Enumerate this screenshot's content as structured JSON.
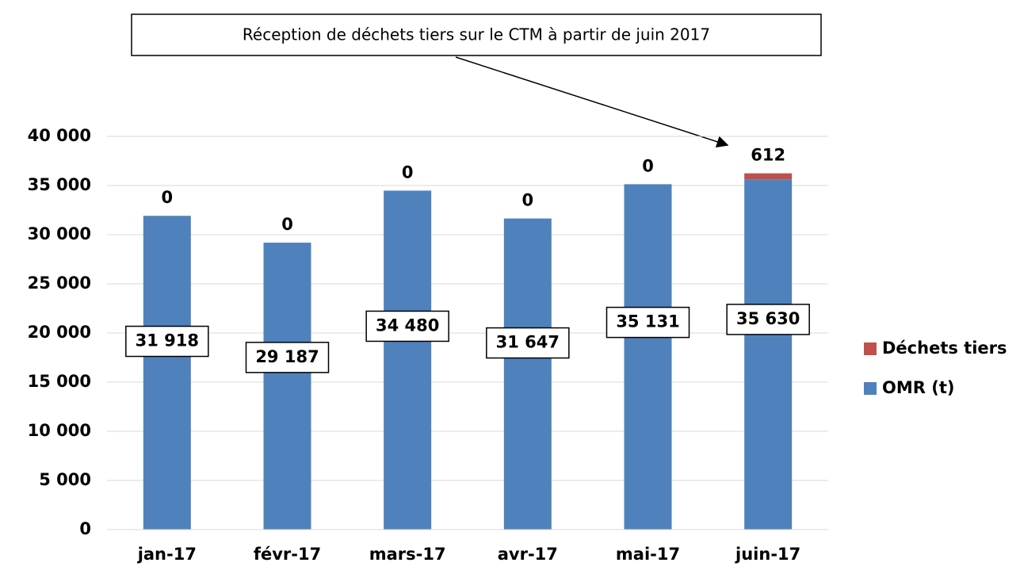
{
  "chart_data": {
    "type": "stacked_bar",
    "annotation": "Réception de déchets tiers sur le CTM à partir de juin 2017",
    "categories": [
      "jan-17",
      "févr-17",
      "mars-17",
      "avr-17",
      "mai-17",
      "juin-17"
    ],
    "series": [
      {
        "name": "OMR (t)",
        "color": "#4f81bd",
        "values": [
          31918,
          29187,
          34480,
          31647,
          35131,
          35630
        ],
        "value_labels": [
          "31 918",
          "29 187",
          "34 480",
          "31 647",
          "35 131",
          "35 630"
        ]
      },
      {
        "name": "Déchets tiers",
        "color": "#c0504d",
        "values": [
          0,
          0,
          0,
          0,
          0,
          612
        ]
      }
    ],
    "ylim": [
      0,
      40000
    ],
    "yticks": [
      0,
      {
        "value": 5000,
        "label": "5 000"
      },
      {
        "value": 10000,
        "label": "10 000"
      },
      {
        "value": 15000,
        "label": "15 000"
      },
      {
        "value": 20000,
        "label": "20 000"
      },
      {
        "value": 25000,
        "label": "25 000"
      },
      {
        "value": 30000,
        "label": "30 000"
      },
      {
        "value": 35000,
        "label": "35 000"
      },
      {
        "value": 40000,
        "label": "40 000"
      }
    ],
    "grid": true
  }
}
